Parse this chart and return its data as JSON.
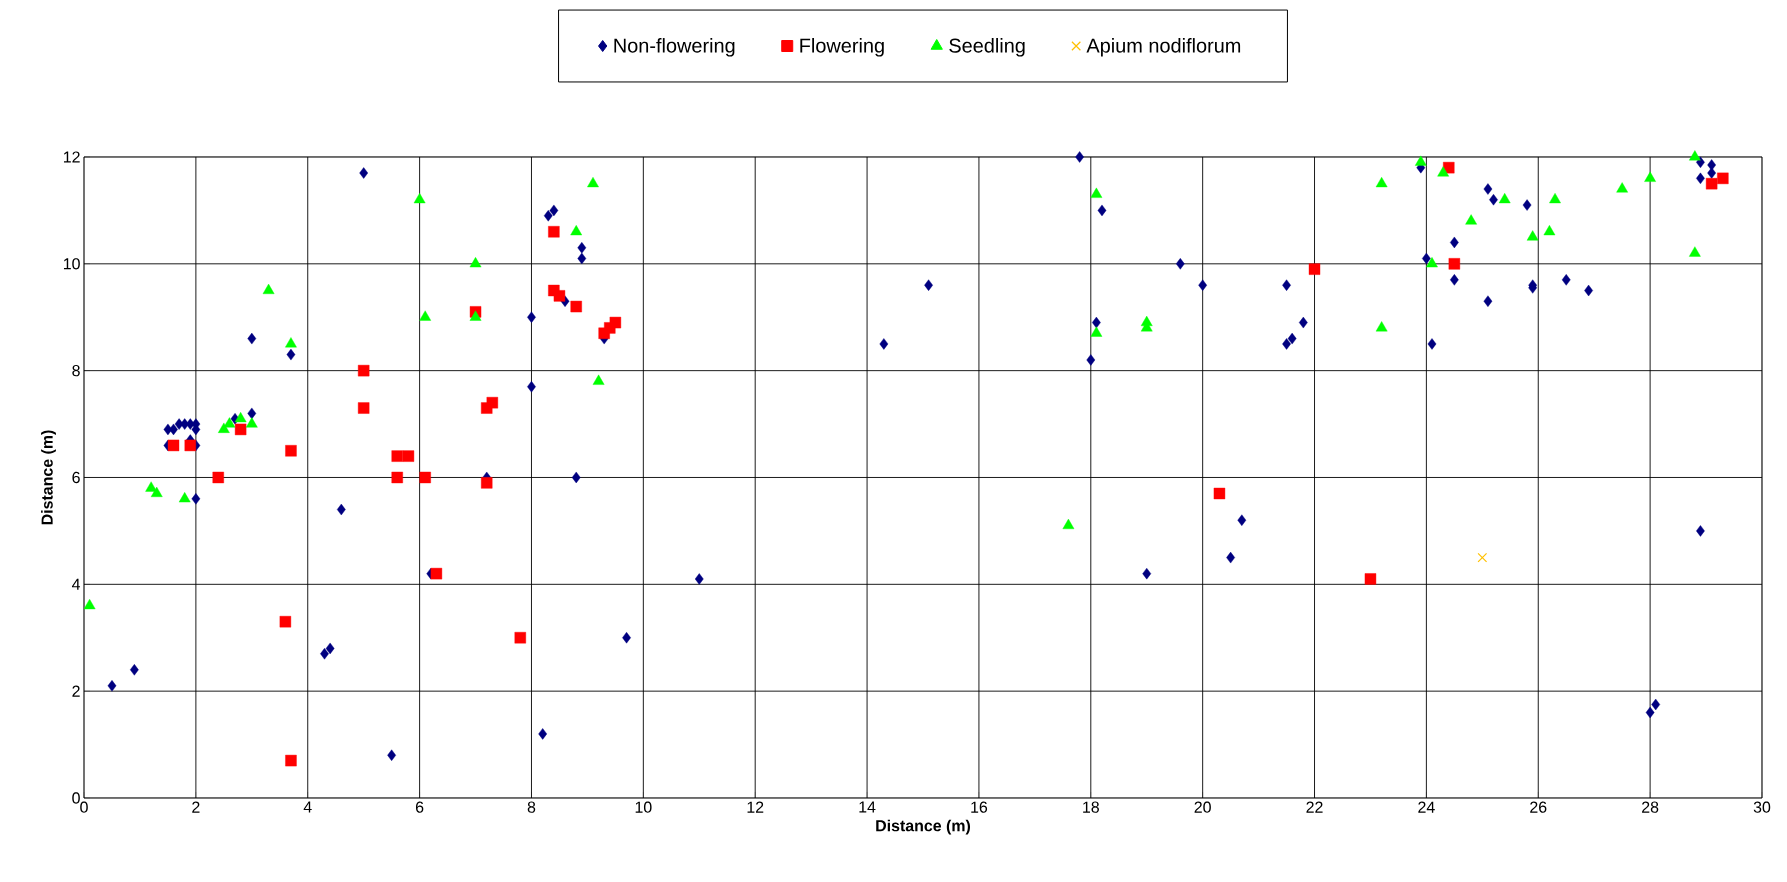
{
  "chart_data": {
    "type": "scatter",
    "xlabel": "Distance (m)",
    "ylabel": "Distance (m)",
    "xlim": [
      0,
      30
    ],
    "ylim": [
      0,
      12
    ],
    "xticks": [
      0,
      2,
      4,
      6,
      8,
      10,
      12,
      14,
      16,
      18,
      20,
      22,
      24,
      26,
      28,
      30
    ],
    "yticks": [
      0,
      2,
      4,
      6,
      8,
      10,
      12
    ],
    "grid": true,
    "legend": "top",
    "series": [
      {
        "name": "Non-flowering",
        "color": "#000080",
        "marker": "diamond",
        "x": [
          0.5,
          0.9,
          1.5,
          1.5,
          1.6,
          1.7,
          1.8,
          1.9,
          2.0,
          2.0,
          2.0,
          1.9,
          2.0,
          2.7,
          3.0,
          3.0,
          3.7,
          4.3,
          4.4,
          4.6,
          5.0,
          5.5,
          6.2,
          7.2,
          8.0,
          8.0,
          8.2,
          8.3,
          8.4,
          8.6,
          8.8,
          8.9,
          8.9,
          9.3,
          9.7,
          11.0,
          14.3,
          15.1,
          17.8,
          18.0,
          18.1,
          18.2,
          19.0,
          19.6,
          20.0,
          20.5,
          20.7,
          21.5,
          21.5,
          21.6,
          21.8,
          23.9,
          24.0,
          24.1,
          24.5,
          24.5,
          25.1,
          25.2,
          25.1,
          25.8,
          25.9,
          25.9,
          26.5,
          26.9,
          28.0,
          28.1,
          28.9,
          28.9,
          29.1,
          29.1,
          28.9
        ],
        "values": [
          2.1,
          2.4,
          6.6,
          6.9,
          6.9,
          7.0,
          7.0,
          7.0,
          7.0,
          6.9,
          6.6,
          6.7,
          5.6,
          7.1,
          7.2,
          8.6,
          8.3,
          2.7,
          2.8,
          5.4,
          11.7,
          0.8,
          4.2,
          6.0,
          7.7,
          9.0,
          1.2,
          10.9,
          11.0,
          9.3,
          6.0,
          10.3,
          10.1,
          8.6,
          3.0,
          4.1,
          8.5,
          9.6,
          12.0,
          8.2,
          8.9,
          11.0,
          4.2,
          10.0,
          9.6,
          4.5,
          5.2,
          8.5,
          9.6,
          8.6,
          8.9,
          11.8,
          10.1,
          8.5,
          10.4,
          9.7,
          11.4,
          11.2,
          9.3,
          11.1,
          9.6,
          9.55,
          9.7,
          9.5,
          1.6,
          1.75,
          11.9,
          11.6,
          11.85,
          11.7,
          5.0
        ]
      },
      {
        "name": "Flowering",
        "color": "#ff0000",
        "marker": "square",
        "x": [
          1.6,
          1.9,
          2.4,
          2.8,
          3.6,
          3.7,
          3.7,
          5.0,
          5.0,
          5.6,
          5.6,
          5.8,
          6.1,
          6.3,
          7.0,
          7.2,
          7.3,
          7.2,
          7.8,
          8.4,
          8.4,
          8.5,
          8.8,
          9.3,
          9.4,
          9.5,
          20.3,
          22.0,
          23.0,
          24.4,
          24.5,
          29.1,
          29.3
        ],
        "values": [
          6.6,
          6.6,
          6.0,
          6.9,
          3.3,
          6.5,
          0.7,
          8.0,
          7.3,
          6.4,
          6.0,
          6.4,
          6.0,
          4.2,
          9.1,
          7.3,
          7.4,
          5.9,
          3.0,
          10.6,
          9.5,
          9.4,
          9.2,
          8.7,
          8.8,
          8.9,
          5.7,
          9.9,
          4.1,
          11.8,
          10.0,
          11.5,
          11.6
        ]
      },
      {
        "name": "Seedling",
        "color": "#00ff00",
        "marker": "triangle",
        "x": [
          0.1,
          1.2,
          1.3,
          1.8,
          2.5,
          2.6,
          2.8,
          3.0,
          3.3,
          3.7,
          6.0,
          6.1,
          7.0,
          7.0,
          8.8,
          9.1,
          9.2,
          17.6,
          18.1,
          18.1,
          19.0,
          19.0,
          23.2,
          23.2,
          23.9,
          24.1,
          24.3,
          24.8,
          25.4,
          25.9,
          26.2,
          26.3,
          27.5,
          28.0,
          28.8,
          28.8
        ],
        "values": [
          3.6,
          5.8,
          5.7,
          5.6,
          6.9,
          7.0,
          7.1,
          7.0,
          9.5,
          8.5,
          11.2,
          9.0,
          10.0,
          9.0,
          10.6,
          11.5,
          7.8,
          5.1,
          11.3,
          8.7,
          8.9,
          8.8,
          11.5,
          8.8,
          11.9,
          10.0,
          11.7,
          10.8,
          11.2,
          10.5,
          10.6,
          11.2,
          11.4,
          11.6,
          12.0,
          10.2
        ]
      },
      {
        "name": "Apium nodiflorum",
        "color": "#ffc000",
        "marker": "cross",
        "x": [
          25.0
        ],
        "values": [
          4.5
        ]
      }
    ]
  }
}
